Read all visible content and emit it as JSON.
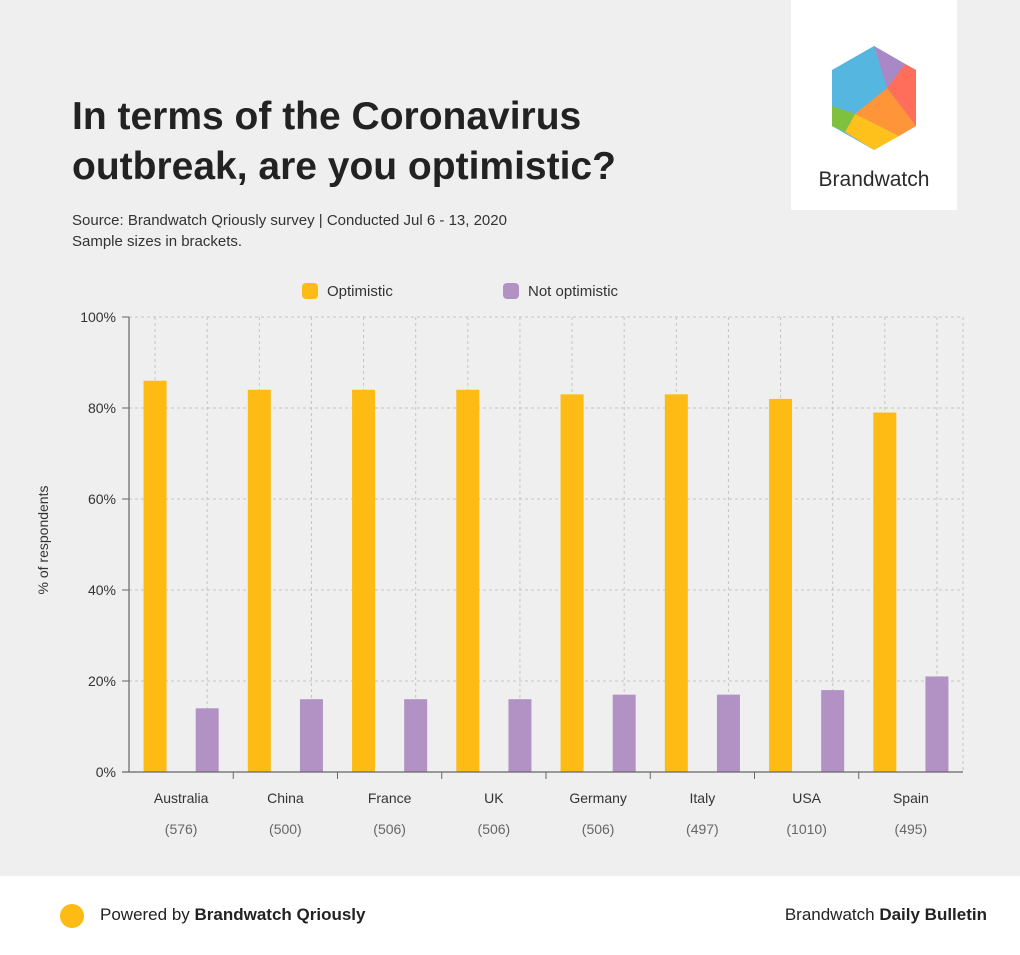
{
  "header": {
    "title": "In terms of the Coronavirus outbreak, are you optimistic?",
    "source_line1": "Source: Brandwatch Qriously survey | Conducted Jul 6 - 13, 2020",
    "source_line2": "Sample sizes in brackets."
  },
  "logo": {
    "brand_name": "Brandwatch",
    "colors": [
      "#55b7e0",
      "#a989c5",
      "#fe6e5b",
      "#fe9538",
      "#fec11b",
      "#80c03f"
    ]
  },
  "chart_data": {
    "type": "bar",
    "categories": [
      "Australia",
      "China",
      "France",
      "UK",
      "Germany",
      "Italy",
      "USA",
      "Spain"
    ],
    "sample_sizes": [
      "(576)",
      "(500)",
      "(506)",
      "(506)",
      "(506)",
      "(497)",
      "(1010)",
      "(495)"
    ],
    "series": [
      {
        "name": "Optimistic",
        "color": "#fdbb13",
        "values": [
          86,
          84,
          84,
          84,
          83,
          83,
          82,
          79
        ]
      },
      {
        "name": "Not optimistic",
        "color": "#b292c4",
        "values": [
          14,
          16,
          16,
          16,
          17,
          17,
          18,
          21
        ]
      }
    ],
    "xlabel": "",
    "ylabel": "% of respondents",
    "ylim": [
      0,
      100
    ],
    "yticks": [
      "0%",
      "20%",
      "40%",
      "60%",
      "80%",
      "100%"
    ],
    "grid": true,
    "legend_position": "top"
  },
  "footer": {
    "powered_prefix": "Powered by ",
    "powered_brand": "Brandwatch Qriously",
    "dot_color": "#fdbb13",
    "right_prefix": "Brandwatch ",
    "right_bold": "Daily Bulletin"
  }
}
